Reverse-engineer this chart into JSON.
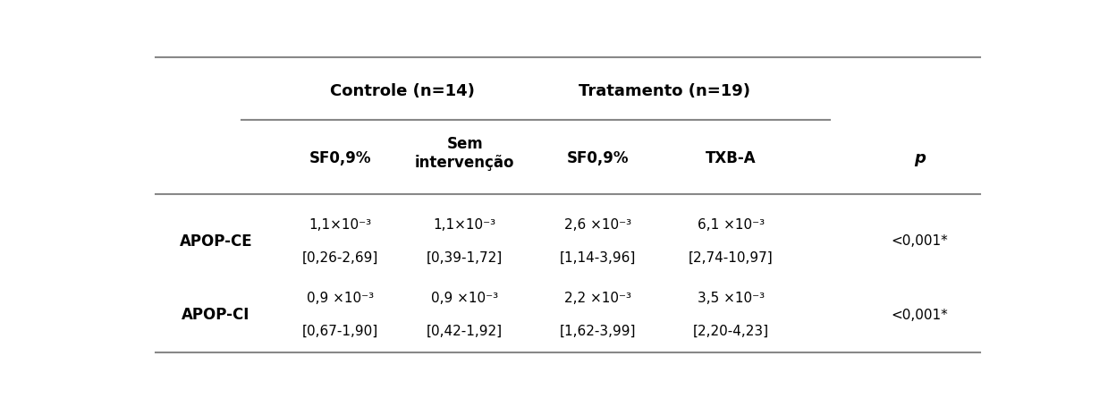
{
  "bg_color": "#ffffff",
  "header1_cols": [
    "Controle (n=14)",
    "Tratamento (n=19)"
  ],
  "header2_cols": [
    "SF0,9%",
    "Sem\nintervenção",
    "SF0,9%",
    "TXB-A"
  ],
  "p_col": "p",
  "row_labels": [
    "APOP-CE",
    "APOP-CI"
  ],
  "cell_line1": [
    "1,1×10⁻³",
    "1,1×10⁻³",
    "2,6 ×10⁻³",
    "6,1 ×10⁻³"
  ],
  "cell_line2": [
    "[0,26-2,69]",
    "[0,39-1,72]",
    "[1,14-3,96]",
    "[2,74-10,97]"
  ],
  "cell_line1_r2": [
    "0,9 ×10⁻³",
    "0,9 ×10⁻³",
    "2,2 ×10⁻³",
    "3,5 ×10⁻³"
  ],
  "cell_line2_r2": [
    "[0,67-1,90]",
    "[0,42-1,92]",
    "[1,62-3,99]",
    "[2,20-4,23]"
  ],
  "p_values": [
    "<0,001*",
    "<0,001*"
  ],
  "line_color": "#888888",
  "top_line_color": "#555555",
  "font_family": "DejaVu Sans",
  "fontsize_header": 13,
  "fontsize_subheader": 12,
  "fontsize_cell": 11,
  "fontsize_rowlabel": 12
}
